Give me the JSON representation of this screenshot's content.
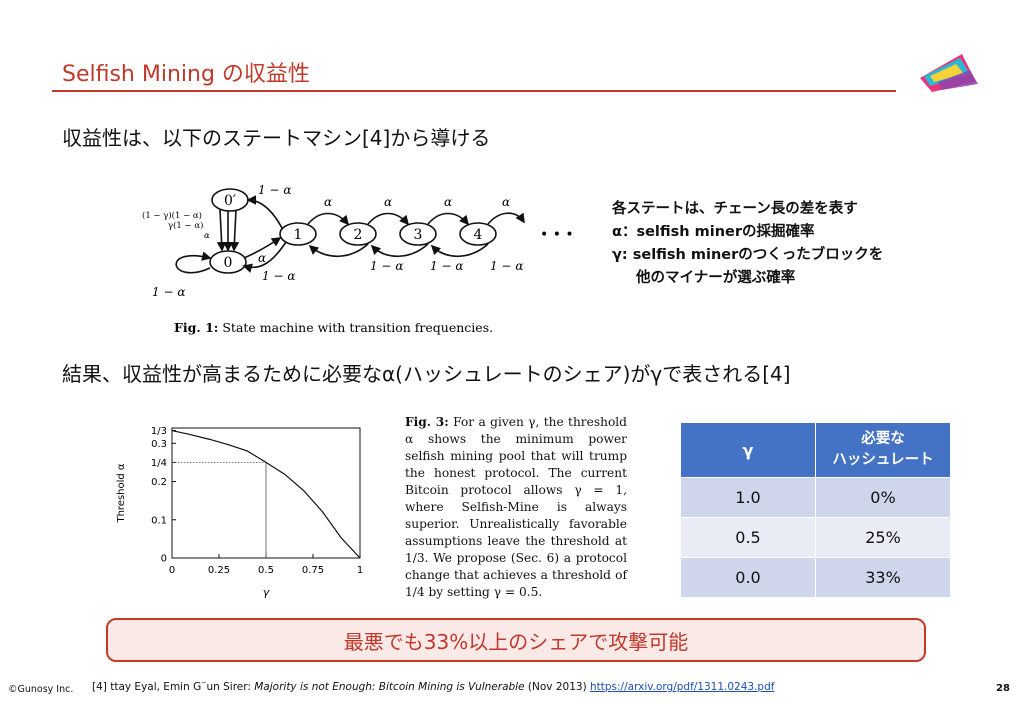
{
  "slide": {
    "title": "Selfish Mining の収益性",
    "heading1": "収益性は、以下のステートマシン[4]から導ける",
    "heading2": "結果、収益性が高まるために必要なα(ハッシュレートのシェア)がγで表される[4]",
    "callout": "最悪でも33%以上のシェアで攻撃可能",
    "page_number": "28"
  },
  "fig1": {
    "caption_bold": "Fig. 1:",
    "caption_rest": " State machine with transition frequencies.",
    "states": [
      "0′",
      "0",
      "1",
      "2",
      "3",
      "4"
    ],
    "ellipsis": "• • •",
    "labels": {
      "one_minus_alpha": "1 − α",
      "alpha": "α",
      "gamma_top": "(1 − γ)(1 − α)",
      "gamma_mid": "γ(1 − α)",
      "gamma_alpha": "α"
    }
  },
  "notes": {
    "line1": "各ステートは、チェーン長の差を表す",
    "line2": "α：selfish minerの採掘確率",
    "line3": "γ: selfish minerのつくったブロックを",
    "line4": "他のマイナーが選ぶ確率"
  },
  "fig3_caption": {
    "bold": "Fig. 3:",
    "text": " For a given γ, the threshold α shows the minimum power selfish mining pool that will trump the honest protocol. The current Bitcoin protocol allows γ = 1, where Selfish-Mine is always superior. Unrealistically favorable assumptions leave the threshold at 1/3. We propose (Sec. 6) a protocol change that achieves a threshold of 1/4 by setting γ = 0.5."
  },
  "table": {
    "headers": [
      "γ",
      "必要な\nハッシュレート"
    ],
    "header_col1": "γ",
    "header_col2_line1": "必要な",
    "header_col2_line2": "ハッシュレート",
    "rows": [
      {
        "gamma": "1.0",
        "rate": "0%"
      },
      {
        "gamma": "0.5",
        "rate": "25%"
      },
      {
        "gamma": "0.0",
        "rate": "33%"
      }
    ]
  },
  "footer": {
    "copyright": "©Gunosy Inc.",
    "ref_prefix": "[4] ttay Eyal, Emin G¨un Sirer: ",
    "ref_title": "Majority is not Enough: Bitcoin Mining is Vulnerable",
    "ref_date": " (Nov 2013) ",
    "ref_link": "https://arxiv.org/pdf/1311.0243.pdf"
  },
  "chart_data": {
    "type": "line",
    "xlabel": "γ",
    "ylabel": "Threshold α",
    "x_ticks": [
      "0",
      "0.25",
      "0.5",
      "0.75",
      "1"
    ],
    "y_ticks": [
      "0",
      "0.1",
      "0.2",
      "1/4",
      "0.3",
      "1/3"
    ],
    "xlim": [
      0,
      1
    ],
    "ylim": [
      0,
      0.34
    ],
    "x": [
      0,
      0.1,
      0.2,
      0.3,
      0.4,
      0.5,
      0.6,
      0.7,
      0.8,
      0.9,
      1.0
    ],
    "y": [
      0.3333,
      0.3226,
      0.3103,
      0.2963,
      0.28,
      0.25,
      0.2188,
      0.1765,
      0.1212,
      0.0526,
      0.0
    ],
    "guide_point": {
      "x": 0.5,
      "y": 0.25
    },
    "grid": false
  }
}
